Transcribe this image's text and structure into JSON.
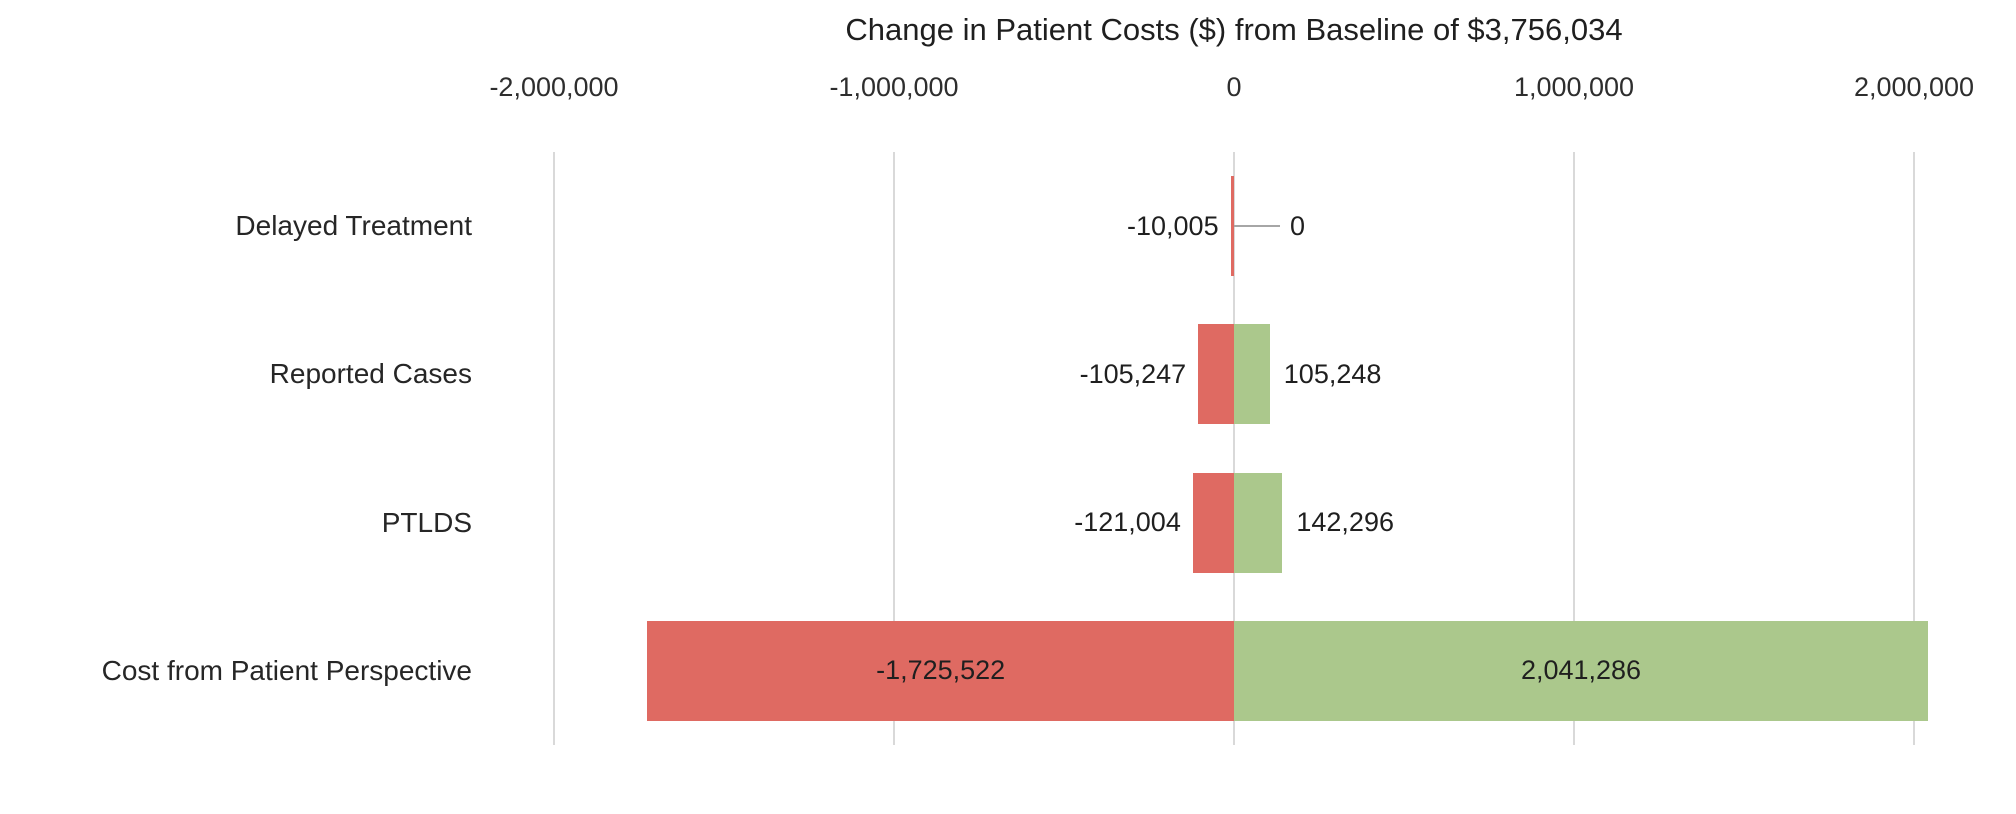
{
  "chart_data": {
    "type": "bar",
    "orientation": "horizontal",
    "title": "Change in Patient Costs ($) from Baseline of $3,756,034",
    "baseline_shown_in_title": "$3,756,034",
    "categories": [
      "Delayed Treatment",
      "Reported Cases",
      "PTLDS",
      "Cost from Patient Perspective"
    ],
    "series": [
      {
        "name": "decrease",
        "color": "#DF6A62",
        "values": [
          -10005,
          -105247,
          -121004,
          -1725522
        ],
        "labels": [
          "-10,005",
          "-105,247",
          "-121,004",
          "-1,725,522"
        ]
      },
      {
        "name": "increase",
        "color": "#ABC88C",
        "values": [
          0,
          105248,
          142296,
          2041286
        ],
        "labels": [
          "0",
          "105,248",
          "142,296",
          "2,041,286"
        ]
      }
    ],
    "x_axis": {
      "min": -2200000,
      "max": 2200000,
      "ticks": [
        -2000000,
        -1000000,
        0,
        1000000,
        2000000
      ],
      "tick_labels": [
        "-2,000,000",
        "-1,000,000",
        "0",
        "1,000,000",
        "2,000,000"
      ],
      "position": "top"
    },
    "grid": true,
    "legend": "none",
    "colors": {
      "gridline": "#D9D9D9",
      "leader_line": "#A6A6A6",
      "text": "#262626",
      "background": "#FFFFFF"
    }
  }
}
